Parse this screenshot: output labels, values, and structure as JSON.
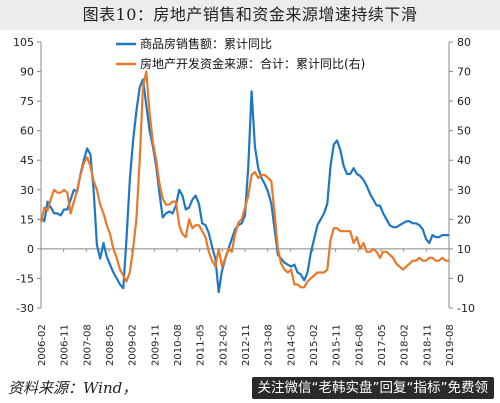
{
  "title": "图表10：房地产销售和资金来源增速持续下滑",
  "source": "资料来源：Wind，",
  "watermark": "关注微信“老韩实盘”回复“指标”免费领",
  "colors": {
    "blue": "#1f77c4",
    "orange": "#e8792b",
    "axis": "#888888"
  },
  "chart_data": {
    "type": "line",
    "title": "",
    "x_tick_labels": [
      "2006-02",
      "2006-11",
      "2007-08",
      "2008-05",
      "2009-02",
      "2009-11",
      "2010-08",
      "2011-05",
      "2012-02",
      "2012-11",
      "2013-08",
      "2014-05",
      "2015-02",
      "2015-11",
      "2016-08",
      "2017-05",
      "2018-02",
      "2018-11",
      "2019-08"
    ],
    "y_left": {
      "min": -30,
      "max": 105,
      "ticks": [
        -30,
        -15,
        0,
        15,
        30,
        45,
        60,
        75,
        90,
        105
      ]
    },
    "y_right": {
      "min": -10,
      "max": 80,
      "ticks": [
        -10,
        0,
        10,
        20,
        30,
        40,
        50,
        60,
        70,
        80
      ]
    },
    "legend": {
      "placement": "top-center"
    },
    "series": [
      {
        "name": "商品房销售额：累计同比",
        "axis": "left",
        "color": "#1f77c4",
        "points": [
          [
            0,
            16
          ],
          [
            0.5,
            14
          ],
          [
            1,
            24
          ],
          [
            1.5,
            21
          ],
          [
            2,
            18
          ],
          [
            2.5,
            18
          ],
          [
            3,
            17
          ],
          [
            3.5,
            20
          ],
          [
            4,
            20
          ],
          [
            4.5,
            25
          ],
          [
            5,
            30
          ],
          [
            5.5,
            29
          ],
          [
            6,
            38
          ],
          [
            6.5,
            45
          ],
          [
            7,
            51
          ],
          [
            7.5,
            48
          ],
          [
            8,
            30
          ],
          [
            8.5,
            2
          ],
          [
            9,
            -5
          ],
          [
            9.5,
            3
          ],
          [
            10,
            -4
          ],
          [
            10.5,
            -8
          ],
          [
            11,
            -12
          ],
          [
            11.5,
            -15
          ],
          [
            12,
            -18
          ],
          [
            12.5,
            -20
          ],
          [
            13,
            5
          ],
          [
            13.5,
            35
          ],
          [
            14,
            55
          ],
          [
            14.5,
            70
          ],
          [
            15,
            82
          ],
          [
            15.5,
            86
          ],
          [
            16,
            73
          ],
          [
            16.5,
            60
          ],
          [
            17,
            52
          ],
          [
            17.5,
            42
          ],
          [
            18,
            28
          ],
          [
            18.5,
            16
          ],
          [
            19,
            18
          ],
          [
            19.5,
            19
          ],
          [
            20,
            18
          ],
          [
            20.5,
            22
          ],
          [
            21,
            30
          ],
          [
            21.5,
            27
          ],
          [
            22,
            20
          ],
          [
            22.5,
            21
          ],
          [
            23,
            25
          ],
          [
            23.5,
            27
          ],
          [
            24,
            23
          ],
          [
            24.5,
            13
          ],
          [
            25,
            12
          ],
          [
            25.5,
            8
          ],
          [
            26,
            1
          ],
          [
            26.5,
            -5
          ],
          [
            27,
            -22
          ],
          [
            27.5,
            -11
          ],
          [
            28,
            -5
          ],
          [
            28.5,
            0
          ],
          [
            29,
            5
          ],
          [
            29.5,
            10
          ],
          [
            30,
            12
          ],
          [
            30.5,
            13
          ],
          [
            31,
            17
          ],
          [
            31.5,
            42
          ],
          [
            32,
            80
          ],
          [
            32.5,
            52
          ],
          [
            33,
            41
          ],
          [
            33.5,
            36
          ],
          [
            34,
            33
          ],
          [
            34.5,
            29
          ],
          [
            35,
            23
          ],
          [
            35.5,
            10
          ],
          [
            36,
            -3
          ],
          [
            36.5,
            -5
          ],
          [
            37,
            -7
          ],
          [
            37.5,
            -8
          ],
          [
            38,
            -9
          ],
          [
            38.5,
            -8
          ],
          [
            39,
            -12
          ],
          [
            39.5,
            -13
          ],
          [
            40,
            -16
          ],
          [
            40.5,
            -12
          ],
          [
            41,
            -2
          ],
          [
            41.5,
            5
          ],
          [
            42,
            12
          ],
          [
            42.5,
            15
          ],
          [
            43,
            18
          ],
          [
            43.5,
            23
          ],
          [
            44,
            42
          ],
          [
            44.5,
            53
          ],
          [
            45,
            55
          ],
          [
            45.5,
            50
          ],
          [
            46,
            42
          ],
          [
            46.5,
            38
          ],
          [
            47,
            38
          ],
          [
            47.5,
            41
          ],
          [
            48,
            38
          ],
          [
            48.5,
            37
          ],
          [
            49,
            35
          ],
          [
            49.5,
            32
          ],
          [
            50,
            28
          ],
          [
            50.5,
            25
          ],
          [
            51,
            22
          ],
          [
            51.5,
            22
          ],
          [
            52,
            18
          ],
          [
            52.5,
            15
          ],
          [
            53,
            12
          ],
          [
            53.5,
            11
          ],
          [
            54,
            11
          ],
          [
            54.5,
            12
          ],
          [
            55,
            13
          ],
          [
            55.5,
            14
          ],
          [
            56,
            14
          ],
          [
            56.5,
            13
          ],
          [
            57,
            13
          ],
          [
            57.5,
            12
          ],
          [
            58,
            10
          ],
          [
            58.5,
            5
          ],
          [
            59,
            3
          ],
          [
            59.5,
            7
          ],
          [
            60,
            6
          ],
          [
            60.5,
            6
          ],
          [
            61,
            7
          ],
          [
            61.5,
            7
          ],
          [
            62,
            7
          ]
        ]
      },
      {
        "name": "房地产开发资金来源：合计：累计同比(右)",
        "axis": "right",
        "color": "#e8792b",
        "points": [
          [
            0,
            19
          ],
          [
            0.5,
            24
          ],
          [
            1,
            23
          ],
          [
            1.5,
            27
          ],
          [
            2,
            30
          ],
          [
            2.5,
            29
          ],
          [
            3,
            29
          ],
          [
            3.5,
            30
          ],
          [
            4,
            29
          ],
          [
            4.5,
            22
          ],
          [
            5,
            26
          ],
          [
            5.5,
            30
          ],
          [
            6,
            35
          ],
          [
            6.5,
            39
          ],
          [
            7,
            41
          ],
          [
            7.5,
            38
          ],
          [
            8,
            33
          ],
          [
            8.5,
            30
          ],
          [
            9,
            25
          ],
          [
            9.5,
            22
          ],
          [
            10,
            18
          ],
          [
            10.5,
            15
          ],
          [
            11,
            10
          ],
          [
            11.5,
            7
          ],
          [
            12,
            3
          ],
          [
            12.5,
            1
          ],
          [
            13,
            -1
          ],
          [
            13.5,
            2
          ],
          [
            14,
            10
          ],
          [
            14.5,
            20
          ],
          [
            15,
            40
          ],
          [
            15.5,
            65
          ],
          [
            16,
            70
          ],
          [
            16.5,
            56
          ],
          [
            17,
            46
          ],
          [
            17.5,
            40
          ],
          [
            18,
            32
          ],
          [
            18.5,
            27
          ],
          [
            19,
            25
          ],
          [
            19.5,
            25
          ],
          [
            20,
            26
          ],
          [
            20.5,
            26
          ],
          [
            21,
            18
          ],
          [
            21.5,
            15
          ],
          [
            22,
            14
          ],
          [
            22.5,
            20
          ],
          [
            23,
            17
          ],
          [
            23.5,
            18
          ],
          [
            24,
            18
          ],
          [
            24.5,
            16
          ],
          [
            25,
            14
          ],
          [
            25.5,
            9
          ],
          [
            26,
            6
          ],
          [
            26.5,
            4
          ],
          [
            27,
            10
          ],
          [
            27.5,
            4
          ],
          [
            28,
            7
          ],
          [
            28.5,
            10
          ],
          [
            29,
            9
          ],
          [
            29.5,
            15
          ],
          [
            30,
            19
          ],
          [
            30.5,
            20
          ],
          [
            31,
            24
          ],
          [
            31.5,
            28
          ],
          [
            32,
            35
          ],
          [
            32.5,
            36
          ],
          [
            33,
            34
          ],
          [
            33.5,
            35
          ],
          [
            34,
            35
          ],
          [
            34.5,
            34
          ],
          [
            35,
            33
          ],
          [
            35.5,
            22
          ],
          [
            36,
            10
          ],
          [
            36.5,
            5
          ],
          [
            37,
            3
          ],
          [
            37.5,
            2
          ],
          [
            38,
            3
          ],
          [
            38.5,
            -2
          ],
          [
            39,
            -2
          ],
          [
            39.5,
            -3
          ],
          [
            40,
            -3
          ],
          [
            40.5,
            -1
          ],
          [
            41,
            0
          ],
          [
            41.5,
            1
          ],
          [
            42,
            2
          ],
          [
            42.5,
            2
          ],
          [
            43,
            2
          ],
          [
            43.5,
            3
          ],
          [
            44,
            13
          ],
          [
            44.5,
            17
          ],
          [
            45,
            17
          ],
          [
            45.5,
            16
          ],
          [
            46,
            16
          ],
          [
            46.5,
            16
          ],
          [
            47,
            16
          ],
          [
            47.5,
            12
          ],
          [
            48,
            14
          ],
          [
            48.5,
            10
          ],
          [
            49,
            12
          ],
          [
            49.5,
            9
          ],
          [
            50,
            9
          ],
          [
            50.5,
            10
          ],
          [
            51,
            9
          ],
          [
            51.5,
            7
          ],
          [
            52,
            9
          ],
          [
            52.5,
            9
          ],
          [
            53,
            8
          ],
          [
            53.5,
            7
          ],
          [
            54,
            5
          ],
          [
            54.5,
            4
          ],
          [
            55,
            3
          ],
          [
            55.5,
            4
          ],
          [
            56,
            5
          ],
          [
            56.5,
            6
          ],
          [
            57,
            6
          ],
          [
            57.5,
            7
          ],
          [
            58,
            6
          ],
          [
            58.5,
            6
          ],
          [
            59,
            7
          ],
          [
            59.5,
            7
          ],
          [
            60,
            6
          ],
          [
            60.5,
            6
          ],
          [
            61,
            7
          ],
          [
            61.5,
            6
          ],
          [
            62,
            6
          ]
        ]
      }
    ]
  }
}
